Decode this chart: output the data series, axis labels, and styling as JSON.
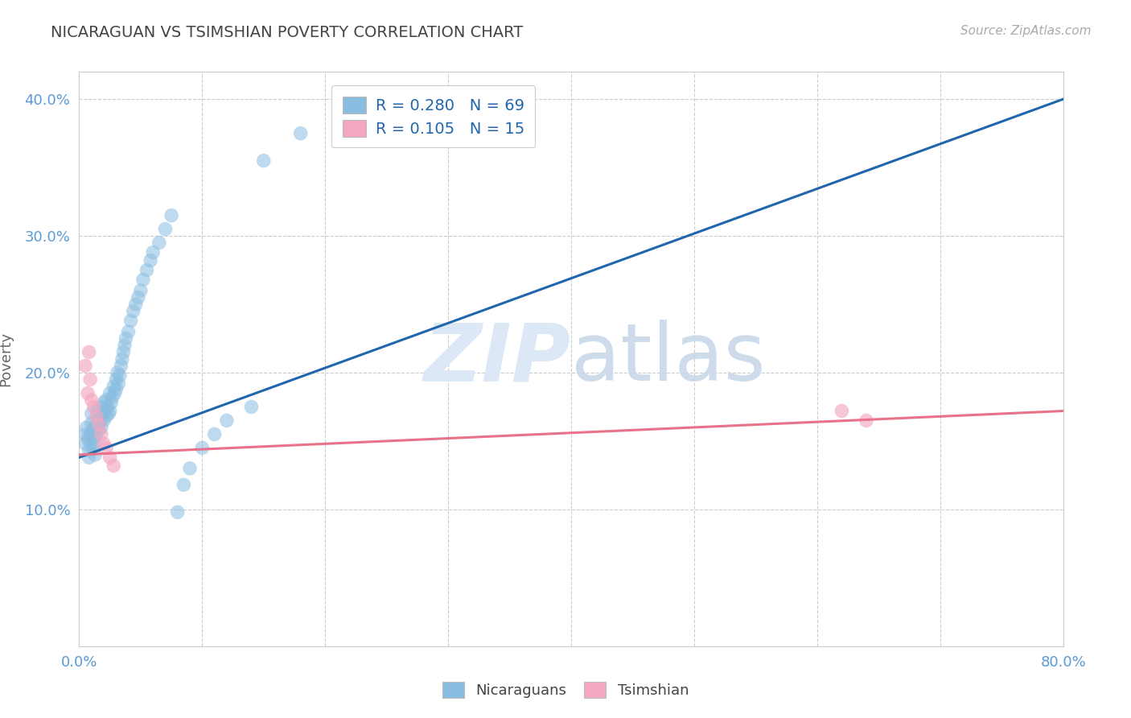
{
  "title": "NICARAGUAN VS TSIMSHIAN POVERTY CORRELATION CHART",
  "source_text": "Source: ZipAtlas.com",
  "ylabel": "Poverty",
  "xlim": [
    0.0,
    0.8
  ],
  "ylim": [
    0.0,
    0.42
  ],
  "xticks": [
    0.0,
    0.1,
    0.2,
    0.3,
    0.4,
    0.5,
    0.6,
    0.7,
    0.8
  ],
  "xticklabels": [
    "0.0%",
    "",
    "",
    "",
    "",
    "",
    "",
    "",
    "80.0%"
  ],
  "yticks": [
    0.0,
    0.1,
    0.2,
    0.3,
    0.4
  ],
  "yticklabels": [
    "",
    "10.0%",
    "20.0%",
    "30.0%",
    "40.0%"
  ],
  "legend_r1": "R = 0.280",
  "legend_n1": "N = 69",
  "legend_r2": "R = 0.105",
  "legend_n2": "N = 15",
  "blue_color": "#89bde0",
  "pink_color": "#f4a8c0",
  "blue_line_color": "#2166ac",
  "pink_line_color": "#e8728a",
  "title_color": "#444444",
  "axis_label_color": "#666666",
  "tick_label_color": "#5b9bd5",
  "grid_color": "#cccccc",
  "watermark_color": "#dce8f5",
  "nicaraguans_x": [
    0.005,
    0.005,
    0.006,
    0.007,
    0.008,
    0.008,
    0.009,
    0.009,
    0.01,
    0.01,
    0.011,
    0.011,
    0.012,
    0.012,
    0.013,
    0.013,
    0.014,
    0.015,
    0.015,
    0.016,
    0.017,
    0.018,
    0.018,
    0.019,
    0.02,
    0.02,
    0.021,
    0.022,
    0.022,
    0.023,
    0.024,
    0.025,
    0.025,
    0.026,
    0.027,
    0.028,
    0.029,
    0.03,
    0.03,
    0.031,
    0.032,
    0.033,
    0.034,
    0.035,
    0.036,
    0.037,
    0.038,
    0.04,
    0.042,
    0.044,
    0.046,
    0.048,
    0.05,
    0.052,
    0.055,
    0.058,
    0.06,
    0.065,
    0.07,
    0.075,
    0.08,
    0.085,
    0.09,
    0.1,
    0.11,
    0.12,
    0.14,
    0.15,
    0.18
  ],
  "nicaraguans_y": [
    0.155,
    0.148,
    0.16,
    0.152,
    0.143,
    0.138,
    0.155,
    0.148,
    0.163,
    0.17,
    0.158,
    0.145,
    0.152,
    0.16,
    0.148,
    0.14,
    0.155,
    0.172,
    0.162,
    0.158,
    0.165,
    0.175,
    0.16,
    0.17,
    0.178,
    0.165,
    0.172,
    0.18,
    0.168,
    0.175,
    0.17,
    0.185,
    0.172,
    0.178,
    0.182,
    0.19,
    0.185,
    0.195,
    0.188,
    0.2,
    0.192,
    0.198,
    0.205,
    0.21,
    0.215,
    0.22,
    0.225,
    0.23,
    0.238,
    0.245,
    0.25,
    0.255,
    0.26,
    0.268,
    0.275,
    0.282,
    0.288,
    0.295,
    0.305,
    0.315,
    0.098,
    0.118,
    0.13,
    0.145,
    0.155,
    0.165,
    0.175,
    0.355,
    0.375
  ],
  "tsimshian_x": [
    0.005,
    0.007,
    0.008,
    0.009,
    0.01,
    0.012,
    0.014,
    0.016,
    0.018,
    0.02,
    0.022,
    0.025,
    0.028,
    0.62,
    0.64
  ],
  "tsimshian_y": [
    0.205,
    0.185,
    0.215,
    0.195,
    0.18,
    0.175,
    0.168,
    0.162,
    0.155,
    0.148,
    0.145,
    0.138,
    0.132,
    0.172,
    0.165
  ],
  "blue_line_x0": 0.0,
  "blue_line_y0": 0.138,
  "blue_line_x1": 0.8,
  "blue_line_y1": 0.4,
  "pink_line_x0": 0.0,
  "pink_line_y0": 0.14,
  "pink_line_x1": 0.8,
  "pink_line_y1": 0.172
}
